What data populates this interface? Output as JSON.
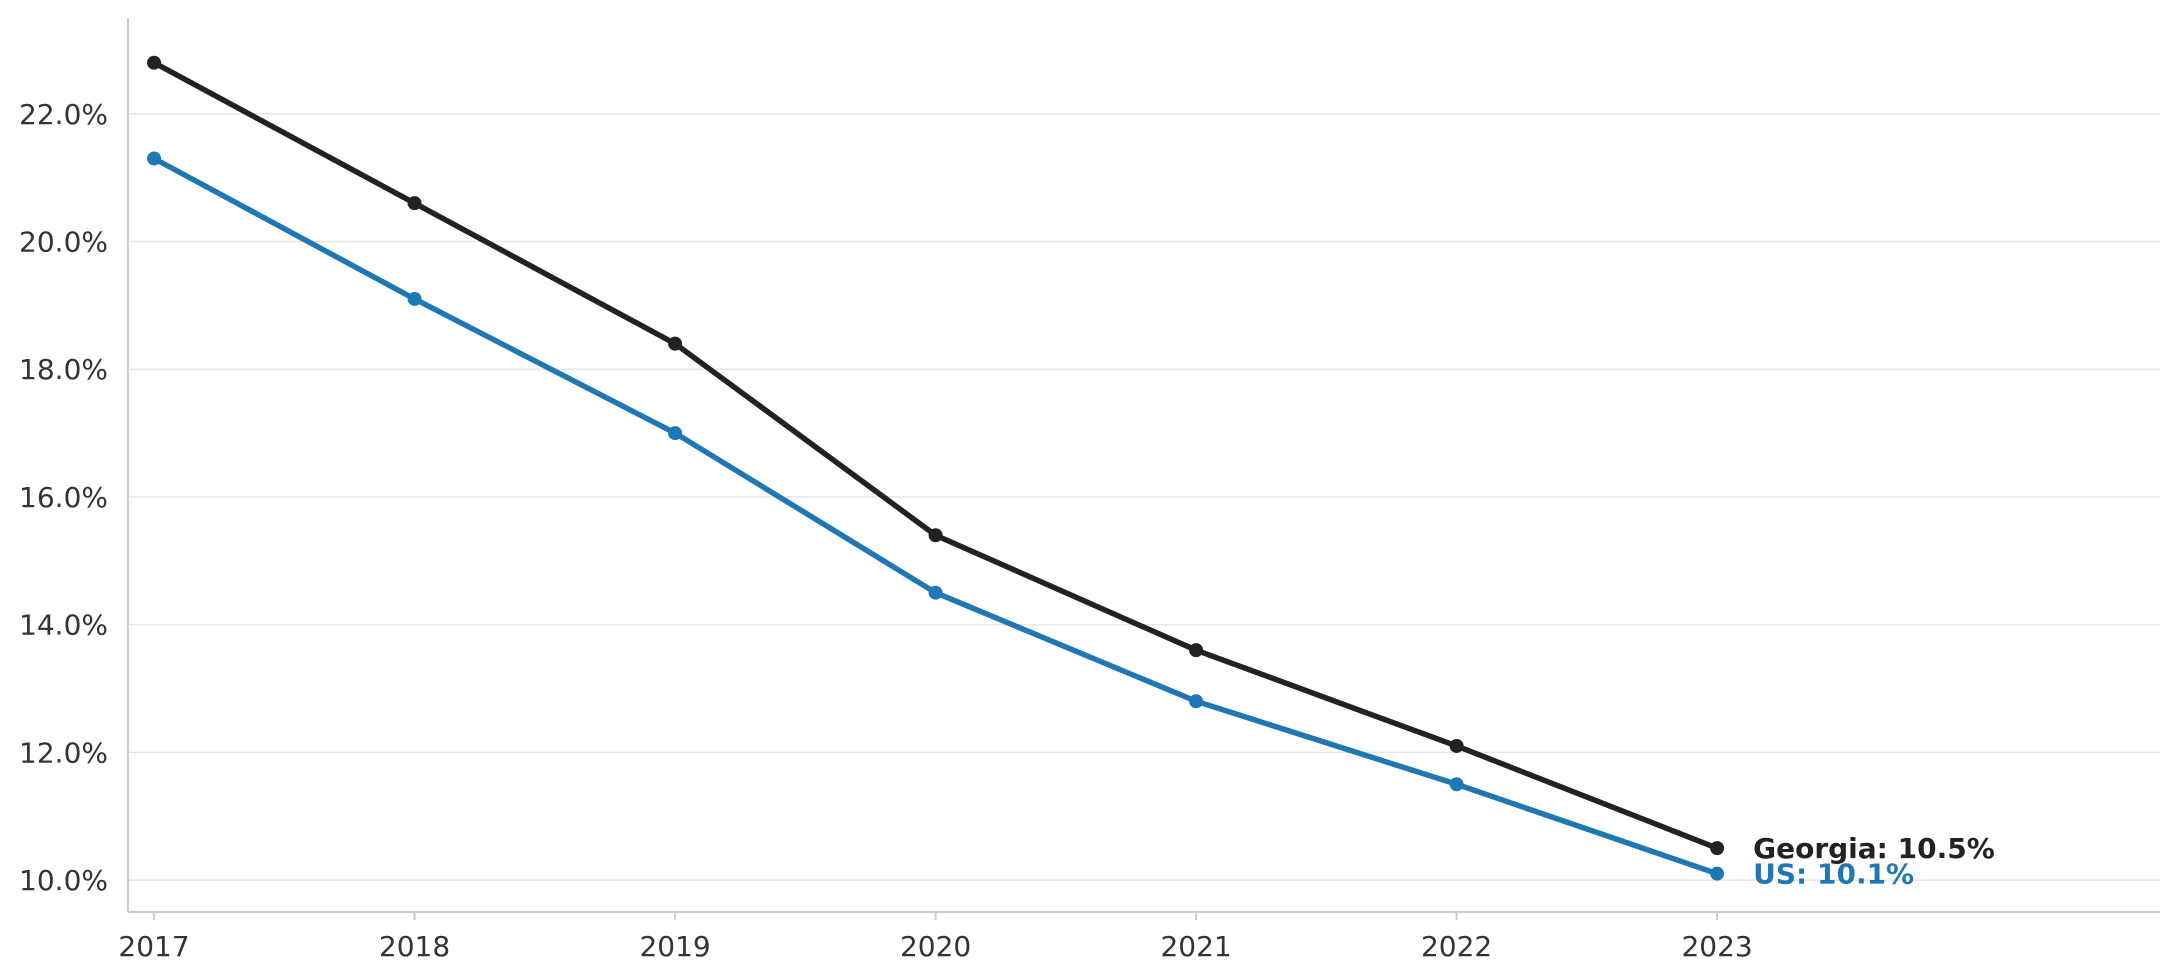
{
  "chart_data": {
    "type": "line",
    "title": "",
    "xlabel": "",
    "ylabel": "",
    "x": [
      2017,
      2018,
      2019,
      2020,
      2021,
      2022,
      2023
    ],
    "x_tick_labels": [
      "2017",
      "2018",
      "2019",
      "2020",
      "2021",
      "2022",
      "2023"
    ],
    "y_ticks": [
      10.0,
      12.0,
      14.0,
      16.0,
      18.0,
      20.0,
      22.0
    ],
    "y_tick_labels": [
      "10.0%",
      "12.0%",
      "14.0%",
      "16.0%",
      "18.0%",
      "20.0%",
      "22.0%"
    ],
    "ylim": [
      9.5,
      23.5
    ],
    "xlim": [
      2016.9,
      2024.7
    ],
    "grid": "horizontal",
    "legend": "none (series labeled at line ends)",
    "series": [
      {
        "name": "Georgia",
        "color": "#222222",
        "values": [
          22.8,
          20.6,
          18.4,
          15.4,
          13.6,
          12.1,
          10.5
        ],
        "end_label": "Georgia: 10.5%"
      },
      {
        "name": "US",
        "color": "#1f77b4",
        "values": [
          21.3,
          19.1,
          17.0,
          14.5,
          12.8,
          11.5,
          10.1
        ],
        "end_label": "US: 10.1%"
      }
    ]
  }
}
